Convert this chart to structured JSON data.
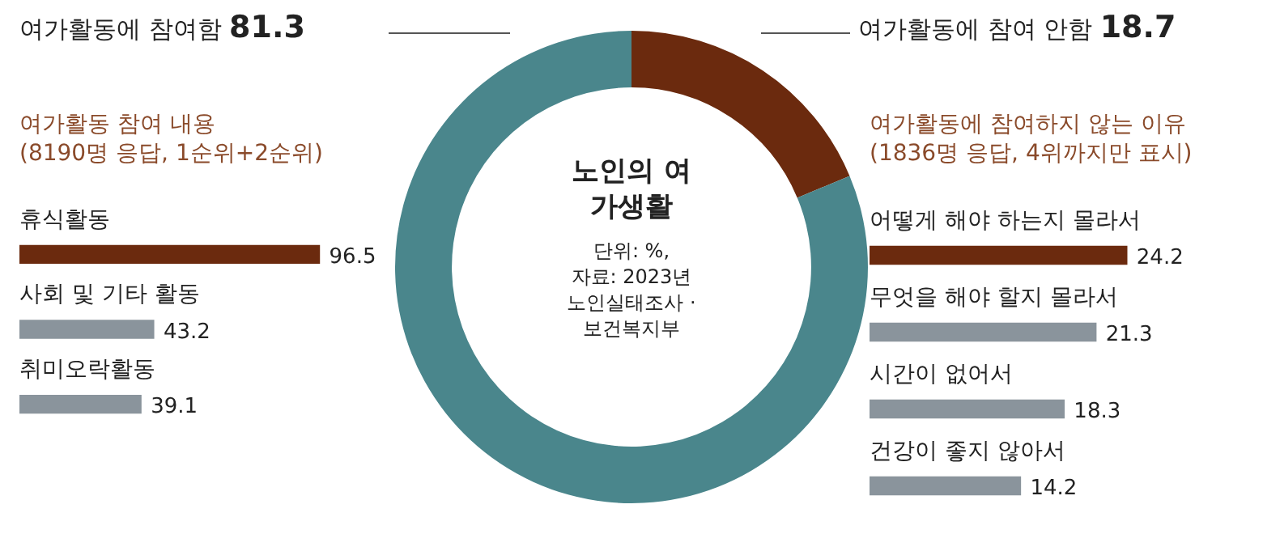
{
  "chart_data": [
    {
      "type": "donut",
      "title": "노인의 여가생활",
      "categories": [
        "여가활동에 참여 안함",
        "여가활동에 참여함"
      ],
      "values": [
        18.7,
        81.3
      ],
      "colors": [
        "#6b2a0e",
        "#4a868c"
      ],
      "data_labels": true,
      "legend": false,
      "annotations": [
        "단위: %,",
        "자료: 2023년",
        "노인실태조사 ·",
        "보건복지부"
      ]
    },
    {
      "type": "bar",
      "orientation": "horizontal",
      "title": "여가활동 참여 내용",
      "subtitle": "(8190명 응답, 1순위+2순위)",
      "categories": [
        "휴식활동",
        "사회 및 기타 활동",
        "취미오락활동"
      ],
      "values": [
        96.5,
        43.2,
        39.1
      ],
      "colors": [
        "#6b2a0e",
        "#8a949c",
        "#8a949c"
      ],
      "data_labels": true,
      "legend": false,
      "tick_labels": false
    },
    {
      "type": "bar",
      "orientation": "horizontal",
      "title": "여가활동에 참여하지 않는 이유",
      "subtitle": "(1836명 응답, 4위까지만 표시)",
      "categories": [
        "어떻게 해야 하는지 몰라서",
        "무엇을 해야 할지 몰라서",
        "시간이 없어서",
        "건강이 좋지 않아서"
      ],
      "values": [
        24.2,
        21.3,
        18.3,
        14.2
      ],
      "colors": [
        "#6b2a0e",
        "#8a949c",
        "#8a949c",
        "#8a949c"
      ],
      "data_labels": true,
      "legend": false,
      "tick_labels": false
    }
  ]
}
